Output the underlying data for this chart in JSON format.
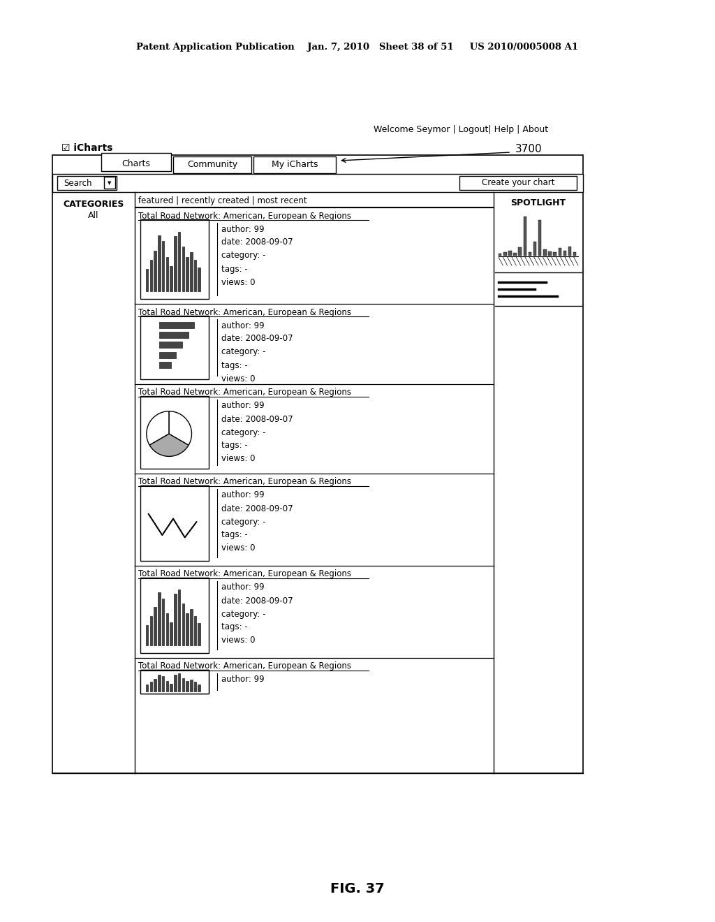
{
  "bg_color": "#ffffff",
  "header_text": "Patent Application Publication    Jan. 7, 2010   Sheet 38 of 51     US 2010/0005008 A1",
  "welcome_text": "Welcome Seymor | Logout| Help | About",
  "icharts_label": "☑ iCharts",
  "label_3700": "3700",
  "tab_charts": "Charts",
  "tab_community": "Community",
  "tab_my_icharts": "My iCharts",
  "search_label": "Search",
  "create_btn": "Create your chart",
  "categories_label": "CATEGORIES",
  "categories_all": "All",
  "filter_tabs": "featured | recently created | most recent",
  "spotlight_label": "SPOTLIGHT",
  "chart_title": "Total Road Network: American, European & Regions",
  "chart_meta": "author: 99\ndate: 2008-09-07\ncategory: -\ntags: -\nviews: 0",
  "chart_meta_last": "author: 99",
  "fig_caption": "FIG. 37",
  "line_color": "#000000",
  "text_color": "#000000"
}
